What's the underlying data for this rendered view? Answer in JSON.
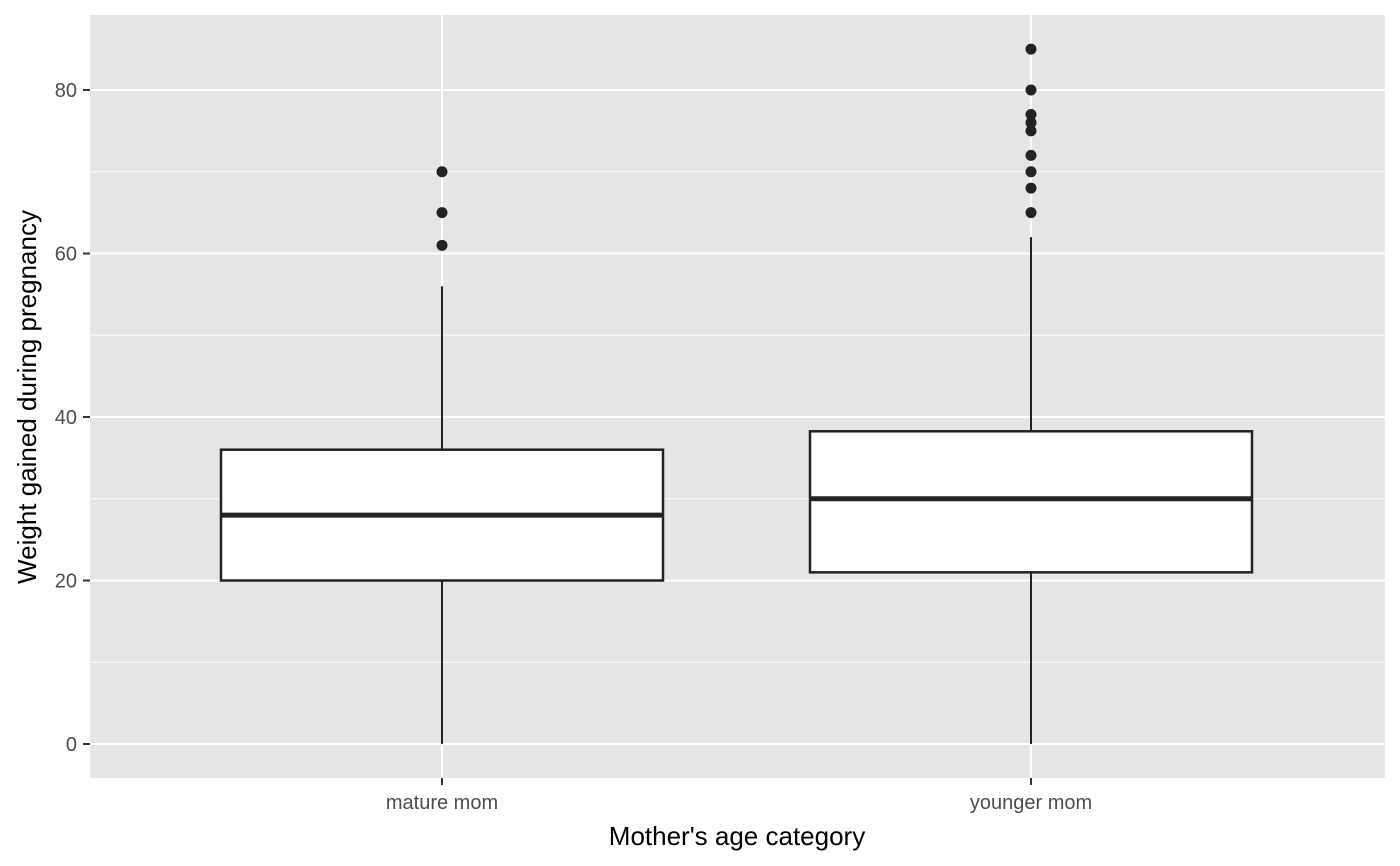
{
  "chart_data": {
    "type": "boxplot",
    "title": "",
    "xlabel": "Mother's age category",
    "ylabel": "Weight gained during pregnancy",
    "ylim": [
      -4,
      89.5
    ],
    "yticks": [
      0,
      20,
      40,
      60,
      80
    ],
    "ytick_labels": [
      "0",
      "20",
      "40",
      "60",
      "80"
    ],
    "grid": true,
    "legend": "none",
    "categories": [
      "mature mom",
      "younger mom"
    ],
    "boxes": [
      {
        "category": "mature mom",
        "whisker_low": 0,
        "q1": 20,
        "median": 28,
        "q3": 36,
        "whisker_high": 56,
        "outliers": [
          61,
          65,
          70
        ]
      },
      {
        "category": "younger mom",
        "whisker_low": 0,
        "q1": 21,
        "median": 30,
        "q3": 38.25,
        "whisker_high": 62,
        "outliers": [
          65,
          68,
          70,
          72,
          75,
          76,
          77,
          80,
          85
        ]
      }
    ],
    "colors": {
      "panel_background": "#e5e5e5",
      "grid_line": "#ffffff",
      "box_fill": "#ffffff",
      "box_stroke": "#222222",
      "tick_label": "#4d4d4d",
      "axis_title": "#000000"
    }
  }
}
